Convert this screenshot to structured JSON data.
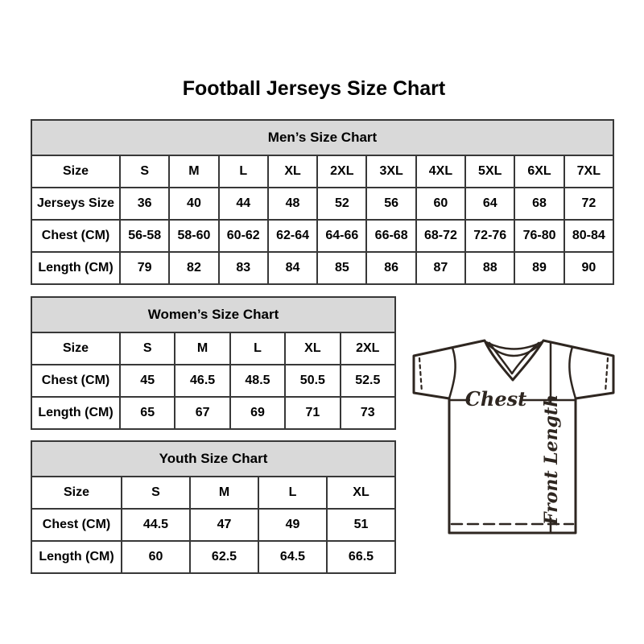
{
  "page_title": "Football Jerseys Size Chart",
  "tables": [
    {
      "title": "Men’s Size Chart",
      "first_col_width": 110,
      "rows": [
        {
          "label": "Size",
          "values": [
            "S",
            "M",
            "L",
            "XL",
            "2XL",
            "3XL",
            "4XL",
            "5XL",
            "6XL",
            "7XL"
          ]
        },
        {
          "label": "Jerseys Size",
          "values": [
            "36",
            "40",
            "44",
            "48",
            "52",
            "56",
            "60",
            "64",
            "68",
            "72"
          ]
        },
        {
          "label": "Chest (CM)",
          "values": [
            "56-58",
            "58-60",
            "60-62",
            "62-64",
            "64-66",
            "66-68",
            "68-72",
            "72-76",
            "76-80",
            "80-84"
          ]
        },
        {
          "label": "Length (CM)",
          "values": [
            "79",
            "82",
            "83",
            "84",
            "85",
            "86",
            "87",
            "88",
            "89",
            "90"
          ]
        }
      ]
    },
    {
      "title": "Women’s Size Chart",
      "first_col_width": 110,
      "rows": [
        {
          "label": "Size",
          "values": [
            "S",
            "M",
            "L",
            "XL",
            "2XL"
          ]
        },
        {
          "label": "Chest (CM)",
          "values": [
            "45",
            "46.5",
            "48.5",
            "50.5",
            "52.5"
          ]
        },
        {
          "label": "Length (CM)",
          "values": [
            "65",
            "67",
            "69",
            "71",
            "73"
          ]
        }
      ]
    },
    {
      "title": "Youth Size Chart",
      "first_col_width": 112,
      "rows": [
        {
          "label": "Size",
          "values": [
            "S",
            "M",
            "L",
            "XL"
          ]
        },
        {
          "label": "Chest (CM)",
          "values": [
            "44.5",
            "47",
            "49",
            "51"
          ]
        },
        {
          "label": "Length (CM)",
          "values": [
            "60",
            "62.5",
            "64.5",
            "66.5"
          ]
        }
      ]
    }
  ],
  "diagram": {
    "chest_label": "Chest",
    "front_length_label": "Front Length"
  },
  "colors": {
    "table_border": "#383838",
    "header_bg": "#d9d9d9",
    "text": "#000000",
    "diagram_stroke": "#2e2620"
  }
}
